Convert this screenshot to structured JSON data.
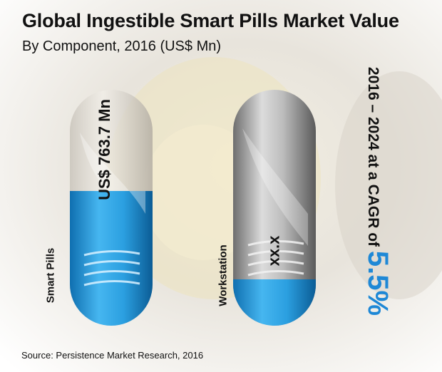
{
  "title": "Global Ingestible Smart Pills Market Value",
  "subtitle": "By Component, 2016 (US$ Mn)",
  "source": "Source: Persistence Market Research, 2016",
  "cagr": {
    "prefix": "2016 – 2024 at a CAGR of ",
    "value": "5.5%"
  },
  "colors": {
    "accent": "#1e88d6",
    "capsule_fill": "#2b9fe0",
    "capsule_grey": "#9a9a9a"
  },
  "chart_data": {
    "type": "bar",
    "categories": [
      "Smart Pills",
      "Workstation"
    ],
    "series": [
      {
        "values": [
          763.7,
          null
        ],
        "value_labels": [
          "US$ 763.7 Mn",
          "xx.x"
        ]
      }
    ],
    "title": "Global Ingestible Smart Pills Market Value",
    "subtitle": "By Component, 2016 (US$ Mn)",
    "xlabel": "",
    "ylabel": ""
  }
}
